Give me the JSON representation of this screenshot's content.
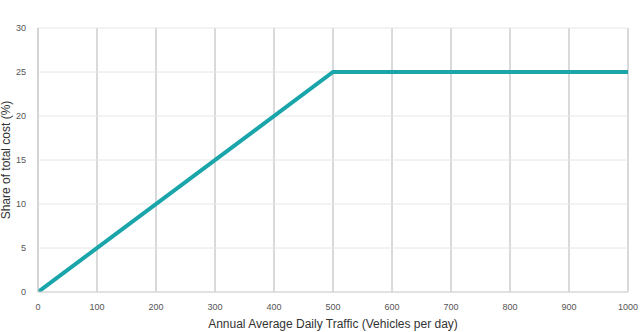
{
  "chart_data": {
    "type": "line",
    "x_label": "Annual Average Daily Traffic (Vehicles per day)",
    "y_label": "Share of total cost (%)",
    "x": [
      0,
      500,
      1000
    ],
    "values": [
      0,
      25,
      25
    ],
    "color": "#1aa5aa",
    "xlim": [
      0,
      1000
    ],
    "xticks": [
      0,
      100,
      200,
      300,
      400,
      500,
      600,
      700,
      800,
      900,
      1000
    ],
    "ylim": [
      0,
      30
    ],
    "yticks": [
      0,
      5,
      10,
      15,
      20,
      25,
      30
    ],
    "grid": true
  }
}
